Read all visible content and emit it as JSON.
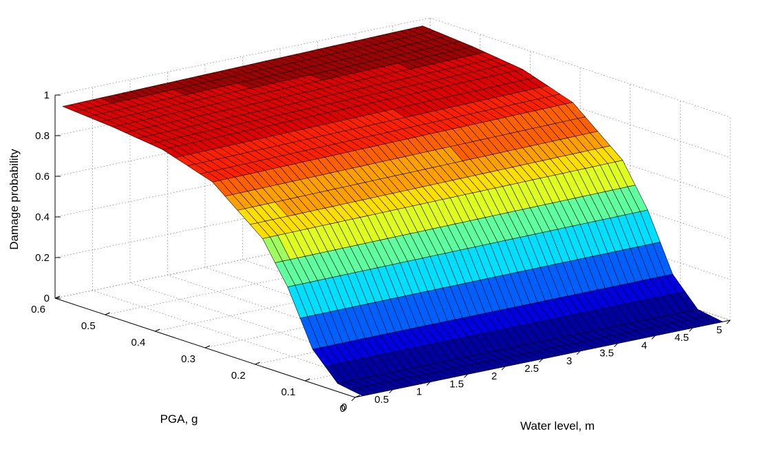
{
  "chart_data": {
    "type": "surface",
    "title": "",
    "xlabel": "Water level, m",
    "ylabel": "PGA, g",
    "zlabel": "Damage probability",
    "xlim": [
      0,
      5
    ],
    "ylim": [
      0,
      0.6
    ],
    "zlim": [
      0,
      1
    ],
    "x_ticks": [
      "0",
      "0.5",
      "1",
      "1.5",
      "2",
      "2.5",
      "3",
      "3.5",
      "4",
      "4.5",
      "5"
    ],
    "y_ticks": [
      "0",
      "0.1",
      "0.2",
      "0.3",
      "0.4",
      "0.5",
      "0.6"
    ],
    "z_ticks": [
      "0",
      "0.2",
      "0.4",
      "0.6",
      "0.8",
      "1"
    ],
    "x_data_range": [
      0.1,
      4.9
    ],
    "y_data_range": [
      0.0,
      0.6
    ],
    "x_samples": 49,
    "y_samples": 25,
    "surface_description": "Damage probability rises with PGA as a lognormal-like fragility curve (about 0 at PGA 0, about 0.5 near PGA 0.16, about 0.95 at PGA 0.6); nearly constant along water level with a slight increase toward higher water levels.",
    "samples": [
      {
        "water_level": 2.5,
        "pga": 0.0,
        "p": 0.0
      },
      {
        "water_level": 2.5,
        "pga": 0.05,
        "p": 0.02
      },
      {
        "water_level": 2.5,
        "pga": 0.1,
        "p": 0.15
      },
      {
        "water_level": 2.5,
        "pga": 0.15,
        "p": 0.42
      },
      {
        "water_level": 2.5,
        "pga": 0.2,
        "p": 0.62
      },
      {
        "water_level": 2.5,
        "pga": 0.3,
        "p": 0.82
      },
      {
        "water_level": 2.5,
        "pga": 0.4,
        "p": 0.9
      },
      {
        "water_level": 2.5,
        "pga": 0.5,
        "p": 0.93
      },
      {
        "water_level": 2.5,
        "pga": 0.6,
        "p": 0.95
      }
    ],
    "colormap": "jet",
    "color_levels": 16,
    "grid": true,
    "legend": "none",
    "projection": "3d-perspective"
  }
}
